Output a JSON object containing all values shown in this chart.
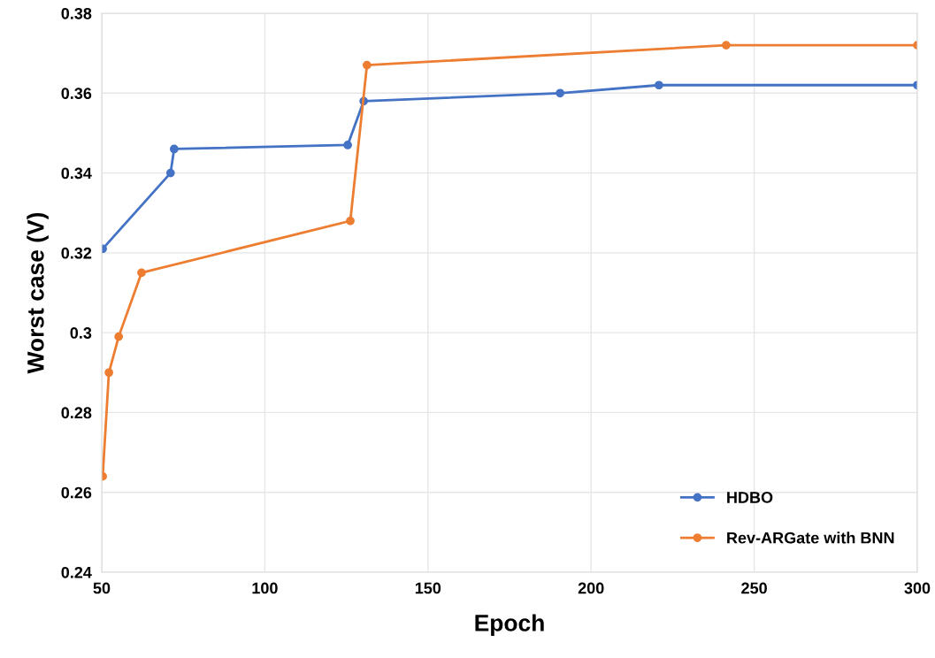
{
  "chart_data": {
    "type": "line",
    "xlabel": "Epoch",
    "ylabel": "Worst case (V)",
    "xlim": [
      50,
      300
    ],
    "xticks": [
      50,
      100,
      150,
      200,
      250,
      300
    ],
    "ylim": [
      0.24,
      0.38
    ],
    "yticks": [
      0.24,
      0.26,
      0.28,
      {
        "value": 0.3,
        "label": "0.3"
      },
      0.32,
      0.34,
      0.36,
      0.38
    ],
    "grid": true,
    "legend": "bottom right",
    "marker": "circle",
    "line_style": "solid",
    "series": [
      {
        "name": "HDBO",
        "color": "#4472c4",
        "x": [
          50.3,
          71.1,
          72.2,
          125.4,
          130.3,
          190.5,
          220.8,
          300
        ],
        "values": [
          0.321,
          0.34,
          0.346,
          0.347,
          0.358,
          0.36,
          0.362,
          0.362
        ]
      },
      {
        "name": "Rev-ARGate with BNN",
        "color": "#ed7d31",
        "x": [
          50.3,
          52.2,
          55.2,
          62.2,
          126.2,
          131.3,
          241.4,
          300
        ],
        "values": [
          0.264,
          0.29,
          0.299,
          0.315,
          0.328,
          0.367,
          0.372,
          0.372
        ]
      }
    ]
  }
}
